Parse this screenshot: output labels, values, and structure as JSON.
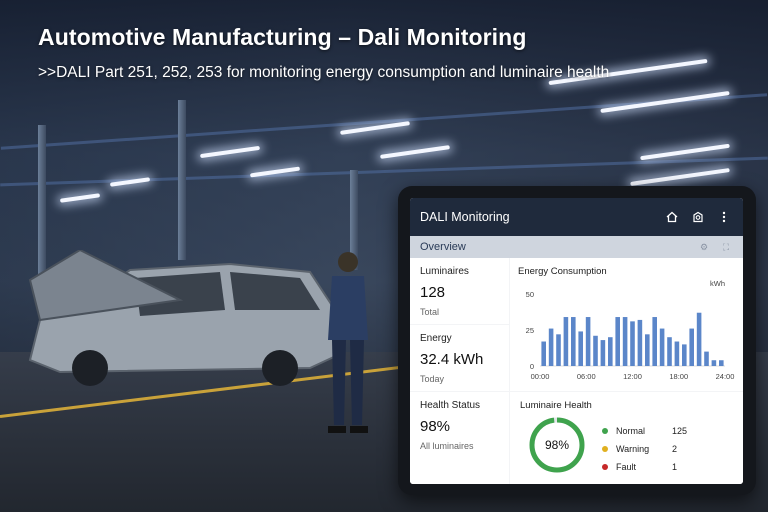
{
  "hero": {
    "title": "Automotive Manufacturing – Dali Monitoring",
    "subtitle": ">>DALI Part 251, 252, 253 for monitoring energy consumption and luminaire health"
  },
  "app": {
    "title": "DALI Monitoring",
    "icons": [
      "home-icon",
      "device-icon",
      "more-vertical-icon"
    ],
    "section": "Overview",
    "section_icons": [
      "settings-icon",
      "expand-icon"
    ]
  },
  "cards": {
    "luminaires": {
      "label": "Luminaires",
      "value": "128",
      "sub": "Total"
    },
    "energy": {
      "label": "Energy",
      "value": "32.4 kWh",
      "sub": "Today"
    },
    "health": {
      "label": "Health Status",
      "value": "98%",
      "sub": "All luminaires"
    }
  },
  "energy_chart": {
    "title": "Energy Consumption",
    "unit": "kWh",
    "bar_color": "#5b86c9"
  },
  "chart_data": {
    "type": "bar",
    "title": "Energy Consumption",
    "ylabel": "kWh",
    "ylim": [
      0,
      50
    ],
    "yticks": [
      "50",
      "25",
      "0"
    ],
    "xticks": [
      "00:00",
      "06:00",
      "12:00",
      "18:00",
      "24:00"
    ],
    "values": [
      17,
      26,
      22,
      34,
      34,
      24,
      34,
      21,
      18,
      20,
      34,
      34,
      31,
      32,
      22,
      34,
      26,
      20,
      17,
      15,
      26,
      37,
      10,
      4,
      4
    ]
  },
  "luminaire_health": {
    "title": "Luminaire Health",
    "percent_label": "98%",
    "percent": 98,
    "ring_color": "#3fa34d",
    "items": [
      {
        "name": "Normal",
        "count": "125",
        "color": "#3fa34d"
      },
      {
        "name": "Warning",
        "count": "2",
        "color": "#e0b020"
      },
      {
        "name": "Fault",
        "count": "1",
        "color": "#c62828"
      }
    ]
  }
}
